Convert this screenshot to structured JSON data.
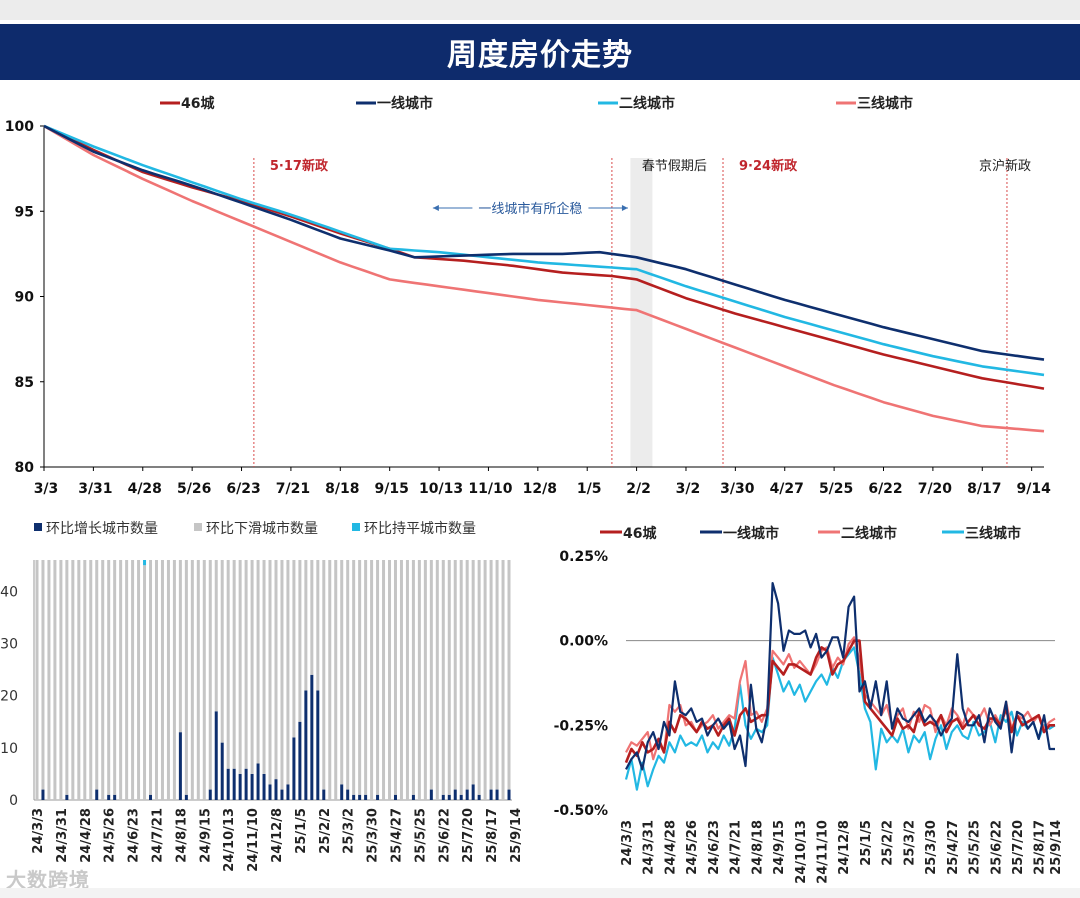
{
  "page": {
    "title": "周度房价走势",
    "watermark": "大数跨境"
  },
  "colors": {
    "c46": "#b51f1f",
    "c1": "#0e2f6e",
    "c2": "#22b8e3",
    "c3": "#ef7474",
    "banner": "#0e2b6c",
    "grey_bar": "#c5c5c5"
  },
  "chart_data": [
    {
      "type": "line",
      "id": "index",
      "legend": [
        "46城",
        "一线城市",
        "二线城市",
        "三线城市"
      ],
      "x_tick_labels": [
        "3/3",
        "3/31",
        "4/28",
        "5/26",
        "6/23",
        "7/21",
        "8/18",
        "9/15",
        "10/13",
        "11/10",
        "12/8",
        "1/5",
        "2/2",
        "3/2",
        "3/30",
        "4/27",
        "5/25",
        "6/22",
        "7/20",
        "8/17",
        "9/14"
      ],
      "ylim": [
        80,
        100
      ],
      "y_ticks": [
        80,
        85,
        90,
        95,
        100
      ],
      "weeks": 81,
      "annotations": [
        {
          "week": 17,
          "label": "5·17新政"
        },
        {
          "week": 55,
          "label": "9·24新政"
        },
        {
          "week": 46,
          "label": "春节假期后"
        },
        {
          "week": 78,
          "label": "京沪新政"
        }
      ],
      "range_note": "一线城市有所企稳",
      "series": [
        {
          "name": "46城",
          "color": "#b51f1f",
          "points": [
            [
              0,
              100
            ],
            [
              4,
              98.6
            ],
            [
              8,
              97.3
            ],
            [
              12,
              96.4
            ],
            [
              16,
              95.6
            ],
            [
              20,
              94.7
            ],
            [
              24,
              93.7
            ],
            [
              28,
              92.8
            ],
            [
              30,
              92.3
            ],
            [
              34,
              92.1
            ],
            [
              38,
              91.8
            ],
            [
              42,
              91.4
            ],
            [
              46,
              91.2
            ],
            [
              48,
              91.0
            ],
            [
              52,
              89.9
            ],
            [
              56,
              89.0
            ],
            [
              60,
              88.2
            ],
            [
              64,
              87.4
            ],
            [
              68,
              86.6
            ],
            [
              72,
              85.9
            ],
            [
              76,
              85.2
            ],
            [
              81,
              84.6
            ]
          ]
        },
        {
          "name": "一线城市",
          "color": "#0e2f6e",
          "points": [
            [
              0,
              100
            ],
            [
              4,
              98.5
            ],
            [
              8,
              97.4
            ],
            [
              12,
              96.5
            ],
            [
              16,
              95.5
            ],
            [
              20,
              94.5
            ],
            [
              24,
              93.4
            ],
            [
              28,
              92.7
            ],
            [
              30,
              92.3
            ],
            [
              34,
              92.4
            ],
            [
              38,
              92.5
            ],
            [
              42,
              92.5
            ],
            [
              45,
              92.6
            ],
            [
              48,
              92.3
            ],
            [
              52,
              91.6
            ],
            [
              56,
              90.7
            ],
            [
              60,
              89.8
            ],
            [
              64,
              89.0
            ],
            [
              68,
              88.2
            ],
            [
              72,
              87.5
            ],
            [
              76,
              86.8
            ],
            [
              81,
              86.3
            ]
          ]
        },
        {
          "name": "二线城市",
          "color": "#22b8e3",
          "points": [
            [
              0,
              100
            ],
            [
              4,
              98.8
            ],
            [
              8,
              97.7
            ],
            [
              12,
              96.7
            ],
            [
              16,
              95.7
            ],
            [
              20,
              94.8
            ],
            [
              24,
              93.8
            ],
            [
              28,
              92.8
            ],
            [
              32,
              92.6
            ],
            [
              36,
              92.3
            ],
            [
              40,
              92.0
            ],
            [
              44,
              91.8
            ],
            [
              48,
              91.6
            ],
            [
              52,
              90.6
            ],
            [
              56,
              89.7
            ],
            [
              60,
              88.8
            ],
            [
              64,
              88.0
            ],
            [
              68,
              87.2
            ],
            [
              72,
              86.5
            ],
            [
              76,
              85.9
            ],
            [
              81,
              85.4
            ]
          ]
        },
        {
          "name": "三线城市",
          "color": "#ef7474",
          "points": [
            [
              0,
              100
            ],
            [
              4,
              98.3
            ],
            [
              8,
              96.9
            ],
            [
              12,
              95.6
            ],
            [
              16,
              94.4
            ],
            [
              20,
              93.2
            ],
            [
              24,
              92.0
            ],
            [
              28,
              91.0
            ],
            [
              32,
              90.6
            ],
            [
              36,
              90.2
            ],
            [
              40,
              89.8
            ],
            [
              44,
              89.5
            ],
            [
              48,
              89.2
            ],
            [
              52,
              88.1
            ],
            [
              56,
              87.0
            ],
            [
              60,
              85.9
            ],
            [
              64,
              84.8
            ],
            [
              68,
              83.8
            ],
            [
              72,
              83.0
            ],
            [
              76,
              82.4
            ],
            [
              81,
              82.1
            ]
          ]
        }
      ]
    },
    {
      "type": "bar",
      "id": "counts",
      "legend": [
        "环比增长城市数量",
        "环比下滑城市数量",
        "环比持平城市数量"
      ],
      "ylim": [
        0,
        46
      ],
      "y_ticks": [
        0,
        10,
        20,
        30,
        40
      ],
      "x_tick_labels": [
        "24/3/3",
        "24/3/31",
        "24/4/28",
        "24/5/26",
        "24/6/23",
        "24/7/21",
        "24/8/18",
        "24/9/15",
        "24/10/13",
        "24/11/10",
        "24/12/8",
        "25/1/5",
        "25/2/2",
        "25/3/2",
        "25/3/30",
        "25/4/27",
        "25/5/25",
        "25/6/22",
        "25/7/20",
        "25/8/17",
        "25/9/14"
      ],
      "up": [
        0,
        2,
        0,
        0,
        0,
        1,
        0,
        0,
        0,
        0,
        2,
        0,
        1,
        1,
        0,
        0,
        0,
        0,
        0,
        1,
        0,
        0,
        0,
        0,
        13,
        1,
        0,
        0,
        0,
        2,
        17,
        11,
        6,
        6,
        5,
        6,
        5,
        7,
        5,
        3,
        4,
        2,
        3,
        12,
        15,
        21,
        24,
        21,
        2,
        0,
        0,
        3,
        2,
        1,
        1,
        1,
        0,
        1,
        0,
        0,
        1,
        0,
        0,
        1,
        0,
        0,
        2,
        0,
        1,
        1,
        2,
        1,
        2,
        3,
        1,
        0,
        2,
        2,
        0,
        2
      ],
      "flat": [
        0,
        0,
        0,
        0,
        0,
        0,
        0,
        0,
        0,
        0,
        0,
        0,
        0,
        0,
        0,
        0,
        0,
        0,
        1,
        0,
        0,
        0,
        0,
        0,
        0,
        0,
        0,
        0,
        0,
        0,
        0,
        0,
        0,
        0,
        0,
        0,
        0,
        0,
        0,
        0,
        0,
        0,
        0,
        0,
        0,
        0,
        0,
        0,
        0,
        0,
        0,
        0,
        0,
        0,
        0,
        0,
        0,
        0,
        0,
        0,
        0,
        0,
        0,
        0,
        0,
        0,
        0,
        0,
        0,
        0,
        0,
        0,
        0,
        0,
        0,
        0,
        0,
        0,
        0,
        0
      ],
      "total": 46
    },
    {
      "type": "line",
      "id": "mom",
      "legend": [
        "46城",
        "一线城市",
        "二线城市",
        "三线城市"
      ],
      "y_tick_labels": [
        "0.25%",
        "0.00%",
        "-0.25%",
        "-0.50%"
      ],
      "y_ticks": [
        0.25,
        0,
        -0.25,
        -0.5
      ],
      "ylim": [
        -0.5,
        0.25
      ],
      "x_tick_labels": [
        "24/3/3",
        "24/3/31",
        "24/4/28",
        "24/5/26",
        "24/6/23",
        "24/7/21",
        "24/8/18",
        "24/9/15",
        "24/10/13",
        "24/11/10",
        "24/12/8",
        "25/1/5",
        "25/2/2",
        "25/3/2",
        "25/3/30",
        "25/4/27",
        "25/5/25",
        "25/6/22",
        "25/7/20",
        "25/8/17",
        "25/9/14"
      ],
      "series": [
        {
          "name": "46城",
          "color": "#b51f1f",
          "values": [
            -0.36,
            -0.32,
            -0.34,
            -0.3,
            -0.33,
            -0.32,
            -0.29,
            -0.33,
            -0.24,
            -0.27,
            -0.22,
            -0.23,
            -0.25,
            -0.27,
            -0.24,
            -0.26,
            -0.25,
            -0.28,
            -0.25,
            -0.23,
            -0.28,
            -0.22,
            -0.2,
            -0.24,
            -0.23,
            -0.22,
            -0.22,
            -0.06,
            -0.08,
            -0.1,
            -0.07,
            -0.07,
            -0.08,
            -0.09,
            -0.1,
            -0.05,
            -0.02,
            -0.03,
            -0.1,
            -0.07,
            -0.06,
            -0.03,
            0.0,
            0.0,
            -0.18,
            -0.2,
            -0.22,
            -0.24,
            -0.26,
            -0.28,
            -0.23,
            -0.26,
            -0.25,
            -0.27,
            -0.21,
            -0.25,
            -0.24,
            -0.25,
            -0.22,
            -0.27,
            -0.24,
            -0.23,
            -0.26,
            -0.24,
            -0.22,
            -0.25,
            -0.26,
            -0.23,
            -0.23,
            -0.25,
            -0.2,
            -0.27,
            -0.22,
            -0.25,
            -0.24,
            -0.23,
            -0.22,
            -0.27,
            -0.25,
            -0.25
          ]
        },
        {
          "name": "一线城市",
          "color": "#0e2f6e",
          "values": [
            -0.38,
            -0.35,
            -0.33,
            -0.38,
            -0.3,
            -0.27,
            -0.32,
            -0.24,
            -0.28,
            -0.12,
            -0.21,
            -0.22,
            -0.2,
            -0.24,
            -0.23,
            -0.28,
            -0.25,
            -0.23,
            -0.26,
            -0.24,
            -0.32,
            -0.28,
            -0.37,
            -0.13,
            -0.26,
            -0.3,
            -0.22,
            0.17,
            0.11,
            -0.03,
            0.03,
            0.02,
            0.02,
            0.03,
            -0.02,
            0.02,
            -0.05,
            -0.03,
            0.01,
            0.01,
            -0.05,
            0.1,
            0.13,
            -0.15,
            -0.12,
            -0.2,
            -0.12,
            -0.22,
            -0.12,
            -0.26,
            -0.2,
            -0.23,
            -0.24,
            -0.22,
            -0.2,
            -0.24,
            -0.22,
            -0.24,
            -0.28,
            -0.25,
            -0.23,
            -0.04,
            -0.2,
            -0.25,
            -0.25,
            -0.22,
            -0.3,
            -0.2,
            -0.24,
            -0.26,
            -0.18,
            -0.33,
            -0.21,
            -0.22,
            -0.26,
            -0.24,
            -0.29,
            -0.22,
            -0.32,
            -0.32
          ]
        },
        {
          "name": "二线城市",
          "color": "#ef7474",
          "values": [
            -0.33,
            -0.3,
            -0.31,
            -0.29,
            -0.27,
            -0.35,
            -0.3,
            -0.33,
            -0.19,
            -0.21,
            -0.19,
            -0.25,
            -0.24,
            -0.27,
            -0.25,
            -0.24,
            -0.22,
            -0.26,
            -0.24,
            -0.22,
            -0.23,
            -0.12,
            -0.06,
            -0.22,
            -0.21,
            -0.24,
            -0.2,
            -0.03,
            -0.05,
            -0.07,
            -0.04,
            -0.08,
            -0.06,
            -0.08,
            -0.1,
            -0.07,
            -0.03,
            -0.02,
            -0.08,
            -0.05,
            -0.07,
            -0.01,
            0.01,
            -0.06,
            -0.16,
            -0.18,
            -0.2,
            -0.22,
            -0.19,
            -0.25,
            -0.22,
            -0.2,
            -0.26,
            -0.21,
            -0.24,
            -0.19,
            -0.2,
            -0.27,
            -0.22,
            -0.25,
            -0.2,
            -0.22,
            -0.25,
            -0.2,
            -0.22,
            -0.23,
            -0.2,
            -0.25,
            -0.22,
            -0.25,
            -0.18,
            -0.26,
            -0.22,
            -0.23,
            -0.21,
            -0.24,
            -0.22,
            -0.26,
            -0.24,
            -0.23
          ]
        },
        {
          "name": "三线城市",
          "color": "#22b8e3",
          "values": [
            -0.41,
            -0.35,
            -0.44,
            -0.36,
            -0.43,
            -0.38,
            -0.34,
            -0.36,
            -0.3,
            -0.33,
            -0.28,
            -0.31,
            -0.3,
            -0.31,
            -0.28,
            -0.33,
            -0.3,
            -0.32,
            -0.28,
            -0.31,
            -0.26,
            -0.13,
            -0.25,
            -0.29,
            -0.26,
            -0.27,
            -0.25,
            -0.05,
            -0.1,
            -0.15,
            -0.12,
            -0.16,
            -0.13,
            -0.18,
            -0.15,
            -0.12,
            -0.1,
            -0.13,
            -0.08,
            -0.11,
            -0.06,
            -0.04,
            -0.02,
            -0.1,
            -0.2,
            -0.24,
            -0.38,
            -0.26,
            -0.3,
            -0.28,
            -0.3,
            -0.26,
            -0.33,
            -0.28,
            -0.3,
            -0.27,
            -0.35,
            -0.29,
            -0.25,
            -0.32,
            -0.27,
            -0.25,
            -0.28,
            -0.29,
            -0.24,
            -0.28,
            -0.27,
            -0.24,
            -0.3,
            -0.22,
            -0.24,
            -0.21,
            -0.28,
            -0.24,
            -0.26,
            -0.24,
            -0.29,
            -0.25,
            -0.26,
            -0.25
          ]
        }
      ]
    }
  ]
}
